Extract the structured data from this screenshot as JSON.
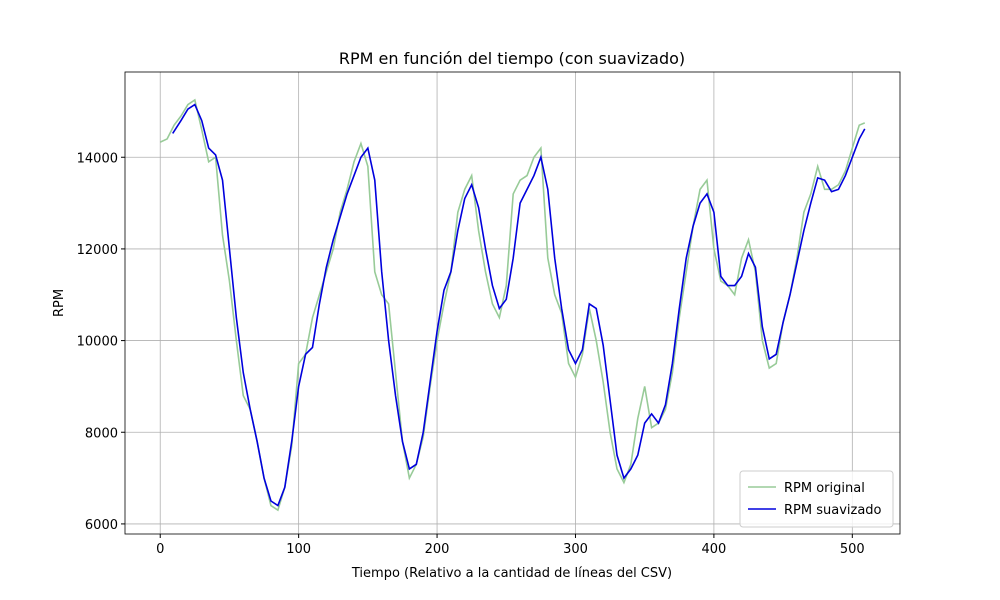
{
  "chart_data": {
    "type": "line",
    "title": "RPM en función del tiempo (con suavizado)",
    "xlabel": "Tiempo (Relativo a la cantidad de líneas del CSV)",
    "ylabel": "RPM",
    "xlim": [
      -25.45,
      534.45
    ],
    "ylim": [
      5780,
      15860
    ],
    "xticks": [
      0,
      100,
      200,
      300,
      400,
      500
    ],
    "yticks": [
      6000,
      8000,
      10000,
      12000,
      14000
    ],
    "grid": true,
    "legend": "lower right",
    "series": [
      {
        "name": "RPM original",
        "color": "#98cb98",
        "x": [
          0,
          5,
          10,
          15,
          20,
          25,
          30,
          35,
          40,
          45,
          50,
          55,
          60,
          65,
          70,
          75,
          80,
          85,
          90,
          95,
          100,
          105,
          110,
          115,
          120,
          125,
          130,
          135,
          140,
          145,
          150,
          155,
          160,
          165,
          170,
          175,
          180,
          185,
          190,
          195,
          200,
          205,
          210,
          215,
          220,
          225,
          230,
          235,
          240,
          245,
          250,
          255,
          260,
          265,
          270,
          275,
          280,
          285,
          290,
          295,
          300,
          305,
          310,
          315,
          320,
          325,
          330,
          335,
          340,
          345,
          350,
          355,
          360,
          365,
          370,
          375,
          380,
          385,
          390,
          395,
          400,
          405,
          410,
          415,
          420,
          425,
          430,
          435,
          440,
          445,
          450,
          455,
          460,
          465,
          470,
          475,
          480,
          485,
          490,
          495,
          500,
          505,
          509
        ],
        "values": [
          14330,
          14400,
          14700,
          14900,
          15150,
          15250,
          14600,
          13900,
          14000,
          12300,
          11300,
          10000,
          8800,
          8500,
          7800,
          7000,
          6400,
          6300,
          6800,
          7700,
          9500,
          9700,
          10500,
          11000,
          11500,
          12000,
          12800,
          13300,
          13900,
          14300,
          13800,
          11500,
          11000,
          10800,
          9300,
          7800,
          7000,
          7300,
          7900,
          9000,
          10000,
          10800,
          11500,
          12800,
          13300,
          13600,
          12400,
          11500,
          10800,
          10500,
          11200,
          13200,
          13500,
          13600,
          14000,
          14200,
          11800,
          11000,
          10600,
          9500,
          9200,
          9700,
          10700,
          10000,
          9100,
          8000,
          7200,
          6900,
          7300,
          8300,
          9000,
          8100,
          8200,
          8500,
          9300,
          10500,
          11500,
          12500,
          13300,
          13500,
          12000,
          11300,
          11200,
          11000,
          11800,
          12200,
          11500,
          10000,
          9400,
          9500,
          10400,
          11000,
          11800,
          12800,
          13200,
          13800,
          13300,
          13300,
          13400,
          13700,
          14200,
          14700,
          14750
        ]
      },
      {
        "name": "RPM suavizado",
        "color": "#0000dd",
        "x": [
          9,
          15,
          20,
          25,
          30,
          35,
          40,
          45,
          50,
          55,
          60,
          65,
          70,
          75,
          80,
          85,
          90,
          95,
          100,
          105,
          110,
          115,
          120,
          125,
          130,
          135,
          140,
          145,
          150,
          155,
          160,
          165,
          170,
          175,
          180,
          185,
          190,
          195,
          200,
          205,
          210,
          215,
          220,
          225,
          230,
          235,
          240,
          245,
          250,
          255,
          260,
          265,
          270,
          275,
          280,
          285,
          290,
          295,
          300,
          305,
          310,
          315,
          320,
          325,
          330,
          335,
          340,
          345,
          350,
          355,
          360,
          365,
          370,
          375,
          380,
          385,
          390,
          395,
          400,
          405,
          410,
          415,
          420,
          425,
          430,
          435,
          440,
          445,
          450,
          455,
          460,
          465,
          470,
          475,
          480,
          485,
          490,
          495,
          500,
          505,
          509
        ],
        "values": [
          14520,
          14800,
          15050,
          15150,
          14800,
          14200,
          14050,
          13500,
          12000,
          10500,
          9300,
          8500,
          7800,
          7000,
          6500,
          6400,
          6800,
          7800,
          9000,
          9700,
          9850,
          10800,
          11600,
          12200,
          12700,
          13200,
          13600,
          14000,
          14200,
          13500,
          11500,
          10000,
          8800,
          7800,
          7200,
          7300,
          8000,
          9100,
          10200,
          11100,
          11500,
          12400,
          13100,
          13400,
          12900,
          12000,
          11200,
          10700,
          10900,
          11800,
          13000,
          13300,
          13600,
          14000,
          13300,
          11800,
          10700,
          9800,
          9500,
          9800,
          10800,
          10700,
          9900,
          8700,
          7500,
          7000,
          7200,
          7500,
          8200,
          8400,
          8200,
          8600,
          9500,
          10700,
          11800,
          12500,
          13000,
          13200,
          12800,
          11400,
          11200,
          11200,
          11400,
          11900,
          11600,
          10300,
          9600,
          9700,
          10400,
          11000,
          11700,
          12400,
          13000,
          13550,
          13500,
          13250,
          13300,
          13600,
          14000,
          14400,
          14620
        ]
      }
    ]
  }
}
